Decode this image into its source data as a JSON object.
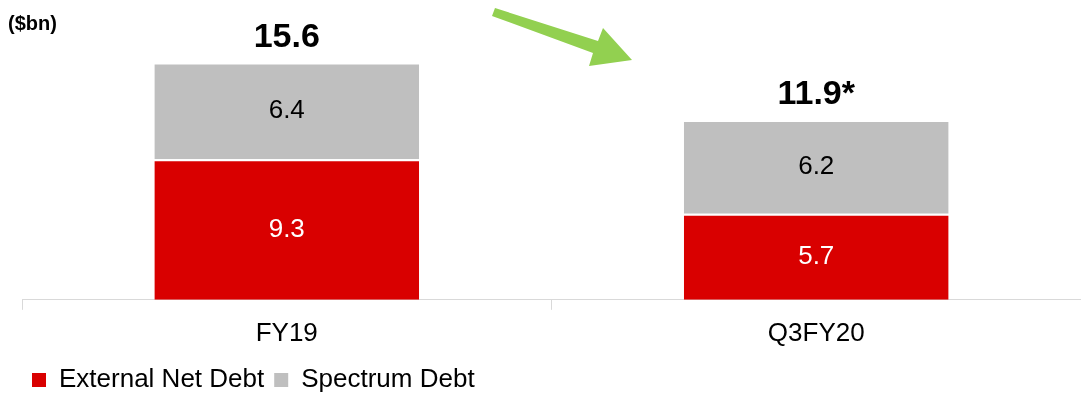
{
  "chart_data": {
    "type": "bar",
    "stacked": true,
    "ylabel": "($bn)",
    "categories": [
      "FY19",
      "Q3FY20"
    ],
    "series": [
      {
        "name": "External Net Debt",
        "color": "#d90000",
        "values": [
          9.3,
          5.7
        ]
      },
      {
        "name": "Spectrum Debt",
        "color": "#bfbfbf",
        "values": [
          6.4,
          6.2
        ]
      }
    ],
    "totals": [
      "15.6",
      "11.9*"
    ],
    "data_labels": true,
    "tick_labels": "x",
    "grid": false,
    "legend": "bottom left"
  }
}
